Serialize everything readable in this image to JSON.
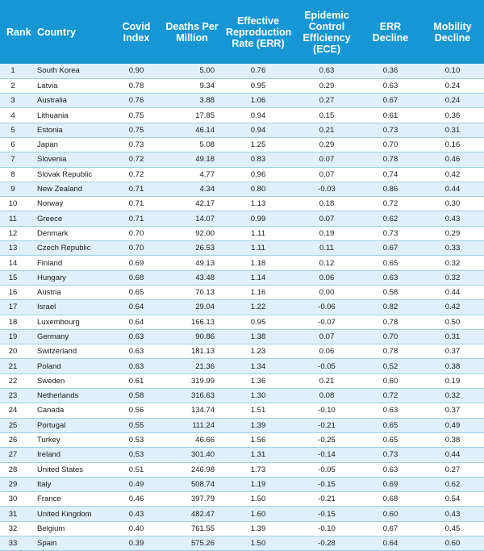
{
  "headers": {
    "rank": "Rank",
    "country": "Country",
    "covid_index": "Covid Index",
    "deaths": "Deaths Per Million",
    "err": "Effective Reproduction Rate (ERR)",
    "ece": "Epidemic Control Efficiency (ECE)",
    "err_decline": "ERR Decline",
    "mobility_decline": "Mobility Decline"
  },
  "rows": [
    {
      "rank": "1",
      "country": "South Korea",
      "ci": "0.90",
      "dpm": "5.00",
      "err": "0.76",
      "ece": "0.63",
      "errd": "0.36",
      "mob": "0.10"
    },
    {
      "rank": "2",
      "country": "Latvia",
      "ci": "0.78",
      "dpm": "9.34",
      "err": "0.95",
      "ece": "0.29",
      "errd": "0.63",
      "mob": "0.24"
    },
    {
      "rank": "3",
      "country": "Australia",
      "ci": "0.76",
      "dpm": "3.88",
      "err": "1.06",
      "ece": "0.27",
      "errd": "0.67",
      "mob": "0.24"
    },
    {
      "rank": "4",
      "country": "Lithuania",
      "ci": "0.75",
      "dpm": "17.85",
      "err": "0.94",
      "ece": "0.15",
      "errd": "0.61",
      "mob": "0.36"
    },
    {
      "rank": "5",
      "country": "Estonia",
      "ci": "0.75",
      "dpm": "46.14",
      "err": "0.94",
      "ece": "0.21",
      "errd": "0.73",
      "mob": "0.31"
    },
    {
      "rank": "6",
      "country": "Japan",
      "ci": "0.73",
      "dpm": "5.08",
      "err": "1.25",
      "ece": "0.29",
      "errd": "0.70",
      "mob": "0.16"
    },
    {
      "rank": "7",
      "country": "Slovenia",
      "ci": "0.72",
      "dpm": "49.18",
      "err": "0.83",
      "ece": "0.07",
      "errd": "0.78",
      "mob": "0.46"
    },
    {
      "rank": "8",
      "country": "Slovak Republic",
      "ci": "0.72",
      "dpm": "4.77",
      "err": "0.96",
      "ece": "0.07",
      "errd": "0.74",
      "mob": "0.42"
    },
    {
      "rank": "9",
      "country": "New Zealand",
      "ci": "0.71",
      "dpm": "4.34",
      "err": "0.80",
      "ece": "-0.03",
      "errd": "0.86",
      "mob": "0.44"
    },
    {
      "rank": "10",
      "country": "Norway",
      "ci": "0.71",
      "dpm": "42.17",
      "err": "1.13",
      "ece": "0.18",
      "errd": "0.72",
      "mob": "0.30"
    },
    {
      "rank": "11",
      "country": "Greece",
      "ci": "0.71",
      "dpm": "14.07",
      "err": "0.99",
      "ece": "0.07",
      "errd": "0.62",
      "mob": "0.43"
    },
    {
      "rank": "12",
      "country": "Denmark",
      "ci": "0.70",
      "dpm": "92.00",
      "err": "1.11",
      "ece": "0.19",
      "errd": "0.73",
      "mob": "0.29"
    },
    {
      "rank": "13",
      "country": "Czech Republic",
      "ci": "0.70",
      "dpm": "26.53",
      "err": "1.11",
      "ece": "0.11",
      "errd": "0.67",
      "mob": "0.33"
    },
    {
      "rank": "14",
      "country": "Finland",
      "ci": "0.69",
      "dpm": "49.13",
      "err": "1.18",
      "ece": "0.12",
      "errd": "0.65",
      "mob": "0.32"
    },
    {
      "rank": "15",
      "country": "Hungary",
      "ci": "0.68",
      "dpm": "43.48",
      "err": "1.14",
      "ece": "0.06",
      "errd": "0.63",
      "mob": "0.32"
    },
    {
      "rank": "16",
      "country": "Austria",
      "ci": "0.65",
      "dpm": "70.13",
      "err": "1.16",
      "ece": "0.00",
      "errd": "0.58",
      "mob": "0.44"
    },
    {
      "rank": "17",
      "country": "Israel",
      "ci": "0.64",
      "dpm": "29.04",
      "err": "1.22",
      "ece": "-0.06",
      "errd": "0.82",
      "mob": "0.42"
    },
    {
      "rank": "18",
      "country": "Luxembourg",
      "ci": "0.64",
      "dpm": "166.13",
      "err": "0.95",
      "ece": "-0.07",
      "errd": "0.78",
      "mob": "0.50"
    },
    {
      "rank": "19",
      "country": "Germany",
      "ci": "0.63",
      "dpm": "90.86",
      "err": "1.38",
      "ece": "0.07",
      "errd": "0.70",
      "mob": "0.31"
    },
    {
      "rank": "20",
      "country": "Switzerland",
      "ci": "0.63",
      "dpm": "181.13",
      "err": "1.23",
      "ece": "0.06",
      "errd": "0.78",
      "mob": "0.37"
    },
    {
      "rank": "21",
      "country": "Poland",
      "ci": "0.63",
      "dpm": "21.36",
      "err": "1.34",
      "ece": "-0.05",
      "errd": "0.52",
      "mob": "0.38"
    },
    {
      "rank": "22",
      "country": "Sweden",
      "ci": "0.61",
      "dpm": "319.99",
      "err": "1.36",
      "ece": "0.21",
      "errd": "0.60",
      "mob": "0.19"
    },
    {
      "rank": "23",
      "country": "Netherlands",
      "ci": "0.58",
      "dpm": "316.63",
      "err": "1.30",
      "ece": "0.08",
      "errd": "0.72",
      "mob": "0.32"
    },
    {
      "rank": "24",
      "country": "Canada",
      "ci": "0.56",
      "dpm": "134.74",
      "err": "1.51",
      "ece": "-0.10",
      "errd": "0.63",
      "mob": "0.37"
    },
    {
      "rank": "25",
      "country": "Portugal",
      "ci": "0.55",
      "dpm": "111.24",
      "err": "1.39",
      "ece": "-0.21",
      "errd": "0.65",
      "mob": "0.49"
    },
    {
      "rank": "26",
      "country": "Turkey",
      "ci": "0.53",
      "dpm": "46.66",
      "err": "1.56",
      "ece": "-0.25",
      "errd": "0.65",
      "mob": "0.38"
    },
    {
      "rank": "27",
      "country": "Ireland",
      "ci": "0.53",
      "dpm": "301.40",
      "err": "1.31",
      "ece": "-0.14",
      "errd": "0.73",
      "mob": "0.44"
    },
    {
      "rank": "28",
      "country": "United States",
      "ci": "0.51",
      "dpm": "246.98",
      "err": "1.73",
      "ece": "-0.05",
      "errd": "0.63",
      "mob": "0.27"
    },
    {
      "rank": "29",
      "country": "Italy",
      "ci": "0.49",
      "dpm": "508.74",
      "err": "1.19",
      "ece": "-0.15",
      "errd": "0.69",
      "mob": "0.62"
    },
    {
      "rank": "30",
      "country": "France",
      "ci": "0.46",
      "dpm": "397.79",
      "err": "1.50",
      "ece": "-0.21",
      "errd": "0.68",
      "mob": "0.54"
    },
    {
      "rank": "31",
      "country": "United Kingdom",
      "ci": "0.43",
      "dpm": "482.47",
      "err": "1.60",
      "ece": "-0.15",
      "errd": "0.60",
      "mob": "0.43"
    },
    {
      "rank": "32",
      "country": "Belgium",
      "ci": "0.40",
      "dpm": "761.55",
      "err": "1.39",
      "ece": "-0.10",
      "errd": "0.67",
      "mob": "0.45"
    },
    {
      "rank": "33",
      "country": "Spain",
      "ci": "0.39",
      "dpm": "575.26",
      "err": "1.50",
      "ece": "-0.28",
      "errd": "0.64",
      "mob": "0.60"
    }
  ]
}
